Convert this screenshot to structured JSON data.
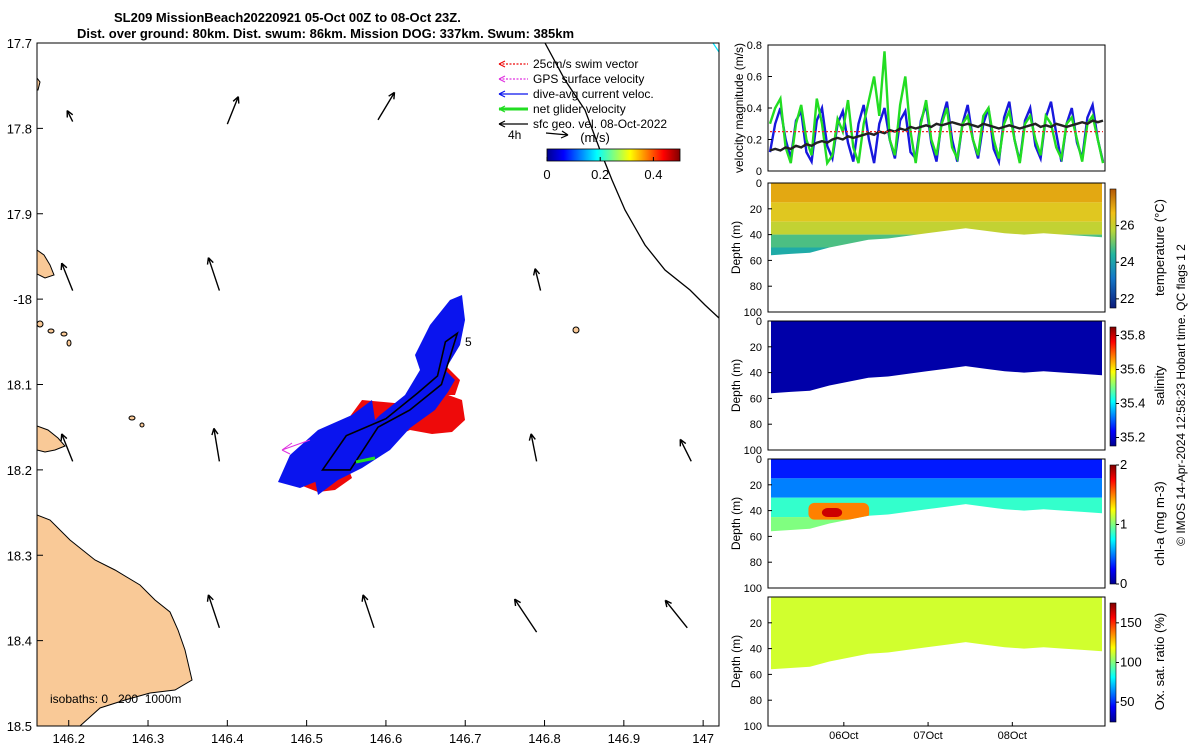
{
  "header": {
    "title_line1": "SL209 MissionBeach20220921 05-Oct 00Z to 08-Oct 23Z.",
    "title_line2": "Dist. over ground: 80km. Dist. swum: 86km. Mission DOG: 337km. Swum: 385km"
  },
  "credit": "© IMOS 14-Apr-2024 12:58:23 Hobart time. QC flags 1  2",
  "colors": {
    "land": "#f9c997",
    "glider_blue": "#0a14ee",
    "glider_red": "#ee0a0a",
    "net_green": "#22dd22",
    "gps_magenta": "#e030e0"
  },
  "chart_data": [
    {
      "id": "map",
      "type": "scatter",
      "xlabel": "",
      "ylabel": "",
      "xlim": [
        146.16,
        147.02
      ],
      "ylim": [
        -18.5,
        -17.7
      ],
      "xticks": [
        146.2,
        146.3,
        146.4,
        146.5,
        146.6,
        146.7,
        146.8,
        146.9,
        147
      ],
      "xtick_labels": [
        "146.2",
        "146.3",
        "146.4",
        "146.5",
        "146.6",
        "146.7",
        "146.8",
        "146.9",
        "147"
      ],
      "yticks": [
        -17.7,
        -17.8,
        -17.9,
        -18,
        -18.1,
        -18.2,
        -18.3,
        -18.4,
        -18.5
      ],
      "ytick_labels": [
        "17.7",
        "17.8",
        "17.9",
        "-18",
        "18.1",
        "18.2",
        "18.3",
        "18.4",
        "18.5"
      ],
      "legend": [
        {
          "label": "25cm/s swim vector",
          "color": "#ee0a0a",
          "style": "dotted"
        },
        {
          "label": "GPS surface velocity",
          "color": "#e030e0",
          "style": "dotted"
        },
        {
          "label": "dive-avg current veloc.",
          "color": "#0a14ee",
          "style": "solid"
        },
        {
          "label": "net glider velocity",
          "color": "#22dd22",
          "style": "thick"
        },
        {
          "label": "sfc geo. vel. 08-Oct-2022",
          "color": "#000000",
          "style": "solid"
        }
      ],
      "legend_position": "top-right",
      "ref_arrow_label": "4h",
      "colorbar": {
        "label": "(m/s)",
        "ticks": [
          0,
          0.2,
          0.4
        ],
        "tick_labels": [
          "0",
          "0.2",
          "0.4"
        ],
        "range": [
          0,
          0.5
        ]
      },
      "isobaths_label": "isobaths: 0   200  1000m",
      "track_number_label": "5",
      "geo_arrows": [
        {
          "lon": 146.205,
          "lat": -17.792,
          "u": -0.01,
          "v": 0.02
        },
        {
          "lon": 146.4,
          "lat": -17.795,
          "u": 0.02,
          "v": 0.05
        },
        {
          "lon": 146.59,
          "lat": -17.79,
          "u": 0.03,
          "v": 0.05
        },
        {
          "lon": 146.205,
          "lat": -17.99,
          "u": -0.02,
          "v": 0.05
        },
        {
          "lon": 146.39,
          "lat": -17.99,
          "u": -0.02,
          "v": 0.06
        },
        {
          "lon": 146.795,
          "lat": -17.99,
          "u": -0.01,
          "v": 0.04
        },
        {
          "lon": 146.205,
          "lat": -18.19,
          "u": -0.02,
          "v": 0.05
        },
        {
          "lon": 146.39,
          "lat": -18.19,
          "u": -0.01,
          "v": 0.06
        },
        {
          "lon": 146.79,
          "lat": -18.19,
          "u": -0.01,
          "v": 0.05
        },
        {
          "lon": 146.985,
          "lat": -18.19,
          "u": -0.02,
          "v": 0.04
        },
        {
          "lon": 146.39,
          "lat": -18.385,
          "u": -0.02,
          "v": 0.06
        },
        {
          "lon": 146.585,
          "lat": -18.385,
          "u": -0.02,
          "v": 0.06
        },
        {
          "lon": 146.79,
          "lat": -18.39,
          "u": -0.04,
          "v": 0.06
        },
        {
          "lon": 146.98,
          "lat": -18.385,
          "u": -0.04,
          "v": 0.05
        }
      ],
      "glider_track": [
        {
          "lon": 146.52,
          "lat": -18.2
        },
        {
          "lon": 146.55,
          "lat": -18.16
        },
        {
          "lon": 146.6,
          "lat": -18.14
        },
        {
          "lon": 146.64,
          "lat": -18.11
        },
        {
          "lon": 146.665,
          "lat": -18.09
        },
        {
          "lon": 146.675,
          "lat": -18.05
        },
        {
          "lon": 146.69,
          "lat": -18.04
        },
        {
          "lon": 146.67,
          "lat": -18.1
        },
        {
          "lon": 146.63,
          "lat": -18.13
        },
        {
          "lon": 146.59,
          "lat": -18.15
        },
        {
          "lon": 146.555,
          "lat": -18.2
        },
        {
          "lon": 146.52,
          "lat": -18.2
        }
      ]
    },
    {
      "id": "velocity",
      "type": "line",
      "ylabel": "velocity magnitude (m/s)",
      "ylim": [
        0,
        0.8
      ],
      "yticks": [
        0,
        0.2,
        0.4,
        0.6,
        0.8
      ],
      "ytick_labels": [
        "0",
        "0.2",
        "0.4",
        "0.6",
        "0.8"
      ],
      "xlim": [
        0,
        4
      ],
      "series": [
        {
          "name": "blue",
          "color": "#1818dd",
          "values": [
            0.12,
            0.3,
            0.4,
            0.2,
            0.08,
            0.32,
            0.38,
            0.12,
            0.06,
            0.32,
            0.4,
            0.16,
            0.08,
            0.3,
            0.38,
            0.18,
            0.06,
            0.3,
            0.42,
            0.2,
            0.05,
            0.3,
            0.4,
            0.2,
            0.08,
            0.32,
            0.38,
            0.12,
            0.08,
            0.32,
            0.42,
            0.18,
            0.06,
            0.32,
            0.44,
            0.2,
            0.06,
            0.3,
            0.42,
            0.2,
            0.08,
            0.3,
            0.4,
            0.14,
            0.06,
            0.34,
            0.44,
            0.2,
            0.06,
            0.32,
            0.4,
            0.16,
            0.08,
            0.34,
            0.44,
            0.24,
            0.06,
            0.3,
            0.4,
            0.18,
            0.08,
            0.34,
            0.42,
            0.2,
            0.06
          ]
        },
        {
          "name": "green",
          "color": "#22dd22",
          "values": [
            0.3,
            0.4,
            0.46,
            0.15,
            0.05,
            0.3,
            0.42,
            0.2,
            0.1,
            0.46,
            0.3,
            0.05,
            0.1,
            0.33,
            0.25,
            0.45,
            0.15,
            0.05,
            0.3,
            0.45,
            0.6,
            0.35,
            0.76,
            0.2,
            0.1,
            0.42,
            0.6,
            0.25,
            0.05,
            0.3,
            0.45,
            0.2,
            0.1,
            0.3,
            0.4,
            0.15,
            0.08,
            0.3,
            0.35,
            0.2,
            0.1,
            0.35,
            0.4,
            0.2,
            0.08,
            0.3,
            0.38,
            0.2,
            0.05,
            0.3,
            0.35,
            0.2,
            0.1,
            0.35,
            0.3,
            0.15,
            0.08,
            0.3,
            0.34,
            0.2,
            0.06,
            0.3,
            0.35,
            0.2,
            0.05
          ]
        },
        {
          "name": "black",
          "color": "#222222",
          "values": [
            0.13,
            0.14,
            0.13,
            0.15,
            0.14,
            0.16,
            0.15,
            0.17,
            0.16,
            0.18,
            0.19,
            0.18,
            0.2,
            0.21,
            0.2,
            0.22,
            0.21,
            0.22,
            0.23,
            0.24,
            0.23,
            0.25,
            0.24,
            0.26,
            0.25,
            0.27,
            0.26,
            0.28,
            0.27,
            0.28,
            0.29,
            0.28,
            0.3,
            0.29,
            0.3,
            0.31,
            0.3,
            0.29,
            0.3,
            0.29,
            0.28,
            0.3,
            0.29,
            0.28,
            0.27,
            0.28,
            0.29,
            0.28,
            0.27,
            0.28,
            0.29,
            0.3,
            0.28,
            0.29,
            0.28,
            0.3,
            0.29,
            0.28,
            0.29,
            0.3,
            0.31,
            0.3,
            0.32,
            0.31,
            0.32
          ]
        },
        {
          "name": "red",
          "color": "#ee2222",
          "values": [
            0.25,
            0.25
          ]
        }
      ]
    },
    {
      "id": "temperature",
      "type": "heatmap",
      "ylabel": "Depth (m)",
      "colorbar_label": "temperature (°C)",
      "ylim": [
        100,
        0
      ],
      "yticks": [
        0,
        20,
        40,
        60,
        80,
        100
      ],
      "ytick_labels": [
        "0",
        "20",
        "40",
        "60",
        "80",
        "100"
      ],
      "xticks": [],
      "cbar_range": [
        21.5,
        28
      ],
      "cbar_ticks": [
        22,
        24,
        26
      ],
      "cbar_tick_labels": [
        "22",
        "24",
        "26"
      ],
      "bottom_depth": [
        56,
        55,
        54,
        50,
        47,
        44,
        43,
        41,
        39,
        37,
        35,
        37,
        39,
        40,
        39,
        40,
        41,
        42
      ],
      "bands": [
        {
          "top": 0,
          "bottom": 15,
          "value": 27.0
        },
        {
          "top": 15,
          "bottom": 30,
          "value": 26.4
        },
        {
          "top": 30,
          "bottom": 40,
          "value": 25.9
        },
        {
          "top": 40,
          "bottom": 50,
          "value": 24.8
        },
        {
          "top": 50,
          "bottom": 60,
          "value": 24.2
        }
      ]
    },
    {
      "id": "salinity",
      "type": "heatmap",
      "ylabel": "Depth (m)",
      "colorbar_label": "salinity",
      "ylim": [
        100,
        0
      ],
      "yticks": [
        0,
        20,
        40,
        60,
        80,
        100
      ],
      "ytick_labels": [
        "0",
        "20",
        "40",
        "60",
        "80",
        "100"
      ],
      "xticks": [],
      "cbar_range": [
        35.15,
        35.85
      ],
      "cbar_ticks": [
        35.2,
        35.4,
        35.6,
        35.8
      ],
      "cbar_tick_labels": [
        "35.2",
        "35.4",
        "35.6",
        "35.8"
      ],
      "bottom_depth": [
        56,
        55,
        54,
        50,
        47,
        44,
        43,
        41,
        39,
        37,
        35,
        37,
        39,
        40,
        39,
        40,
        41,
        42
      ],
      "bands": [
        {
          "top": 0,
          "bottom": 60,
          "value": 35.17
        }
      ]
    },
    {
      "id": "chla",
      "type": "heatmap",
      "ylabel": "Depth (m)",
      "colorbar_label": "chl-a (mg m-3)",
      "ylim": [
        100,
        0
      ],
      "yticks": [
        0,
        20,
        40,
        60,
        80,
        100
      ],
      "ytick_labels": [
        "0",
        "20",
        "40",
        "60",
        "80",
        "100"
      ],
      "xticks": [],
      "cbar_range": [
        0,
        2
      ],
      "cbar_ticks": [
        0,
        1,
        2
      ],
      "cbar_tick_labels": [
        "0",
        "1",
        "2"
      ],
      "bottom_depth": [
        56,
        55,
        54,
        50,
        47,
        44,
        43,
        41,
        39,
        37,
        35,
        37,
        39,
        40,
        39,
        40,
        41,
        42
      ],
      "bands": [
        {
          "top": 0,
          "bottom": 15,
          "value": 0.3
        },
        {
          "top": 15,
          "bottom": 30,
          "value": 0.5
        },
        {
          "top": 30,
          "bottom": 45,
          "value": 0.85
        },
        {
          "top": 45,
          "bottom": 60,
          "value": 1.0
        }
      ],
      "patches": [
        {
          "x0": 0.12,
          "x1": 0.3,
          "top": 34,
          "bottom": 47,
          "value": 1.5
        },
        {
          "x0": 0.16,
          "x1": 0.22,
          "top": 38,
          "bottom": 45,
          "value": 1.85
        }
      ]
    },
    {
      "id": "oxygen",
      "type": "heatmap",
      "ylabel": "Depth (m)",
      "colorbar_label": "Ox. sat. ratio (%)",
      "ylim": [
        100,
        0
      ],
      "yticks": [
        20,
        40,
        60,
        80,
        100
      ],
      "ytick_labels": [
        "20",
        "40",
        "60",
        "80",
        "100"
      ],
      "xticks": [
        0.9,
        1.9,
        2.9
      ],
      "xtick_labels": [
        "06Oct",
        "07Oct",
        "08Oct"
      ],
      "cbar_range": [
        25,
        175
      ],
      "cbar_ticks": [
        50,
        100,
        150
      ],
      "cbar_tick_labels": [
        "50",
        "100",
        "150"
      ],
      "bottom_depth": [
        56,
        55,
        54,
        50,
        47,
        44,
        43,
        41,
        39,
        37,
        35,
        37,
        39,
        40,
        39,
        40,
        41,
        42
      ],
      "bands": [
        {
          "top": 0,
          "bottom": 60,
          "value": 112
        }
      ]
    }
  ]
}
